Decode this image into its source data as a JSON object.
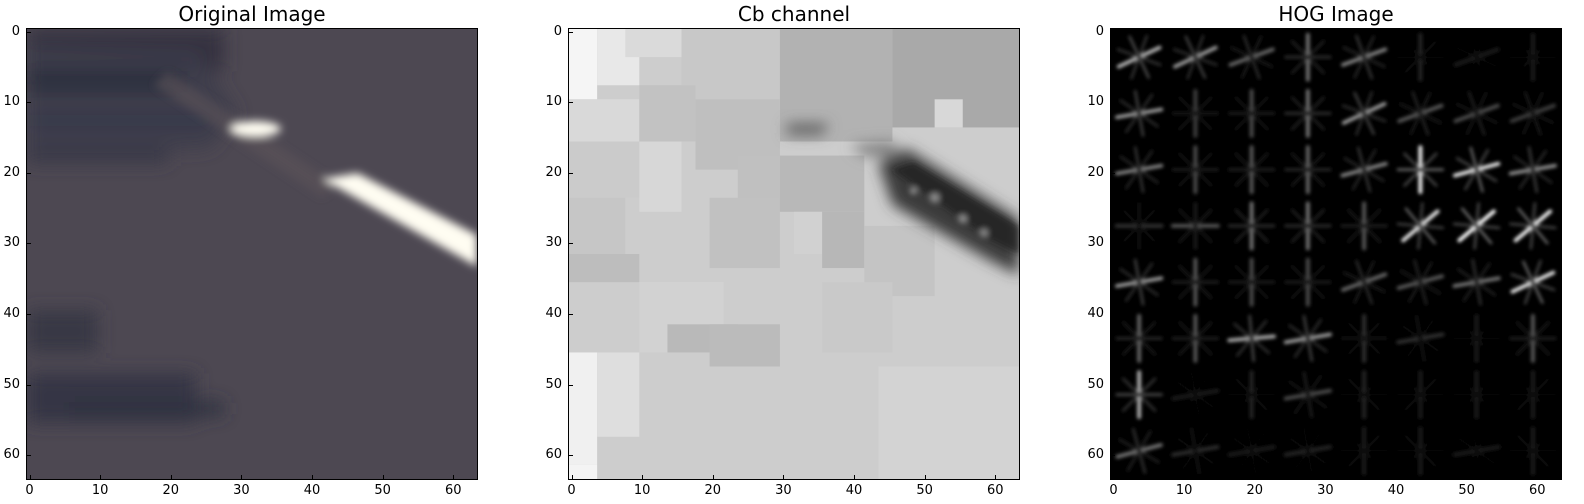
{
  "panels": [
    {
      "id": "original",
      "title": "Original Image"
    },
    {
      "id": "cb",
      "title": "Cb channel"
    },
    {
      "id": "hog",
      "title": "HOG Image"
    }
  ],
  "axes": {
    "xticks": [
      "0",
      "10",
      "20",
      "30",
      "40",
      "50",
      "60"
    ],
    "yticks": [
      "0",
      "10",
      "20",
      "30",
      "40",
      "50",
      "60"
    ],
    "range": [
      0,
      64
    ]
  },
  "colors": {
    "road": "#4b4650",
    "lane_marking": "#fffdf2",
    "hog_background": "#000000"
  }
}
